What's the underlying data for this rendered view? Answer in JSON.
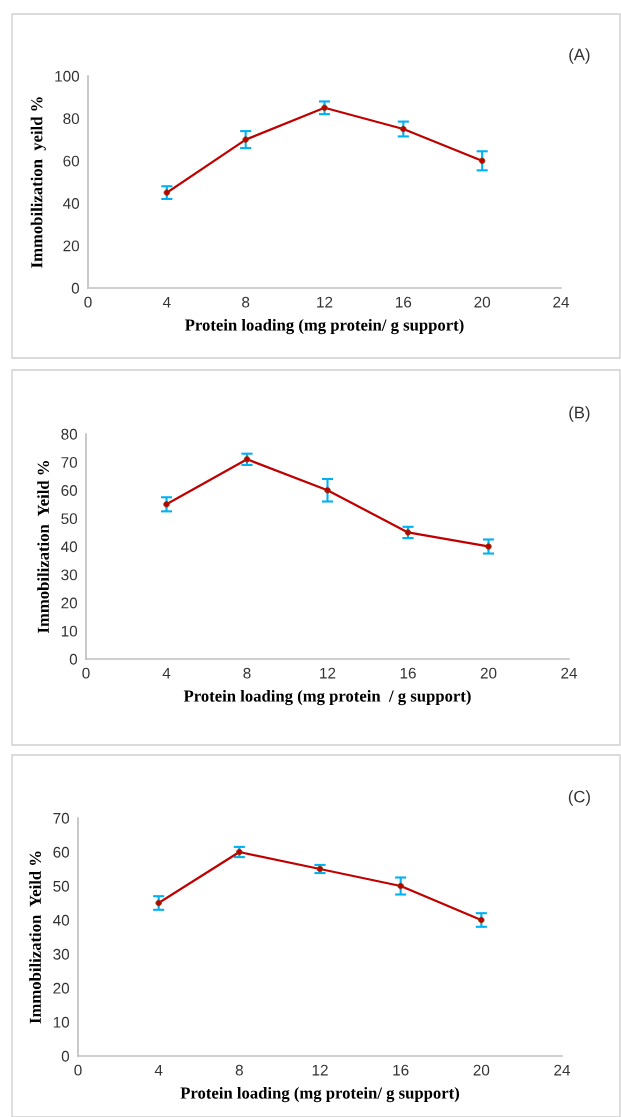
{
  "chart_data": [
    {
      "type": "line",
      "xlabel": "Protein loading (mg protein/ g support)",
      "ylabel": "Immobilization  yeild %",
      "annotations": [
        "(A)"
      ],
      "x": [
        4,
        8,
        12,
        16,
        20
      ],
      "series": [
        {
          "color": "#c00000",
          "values": [
            45,
            70,
            85,
            75,
            60
          ],
          "errors": [
            3,
            4,
            3,
            3.5,
            4.5
          ]
        }
      ],
      "xlim": [
        0,
        24
      ],
      "xticks": [
        0,
        4,
        8,
        12,
        16,
        20,
        24
      ],
      "ylim": [
        0,
        100
      ],
      "yticks": [
        0,
        20,
        40,
        60,
        80,
        100
      ],
      "marker": "circle",
      "line_style": "solid",
      "grid": false
    },
    {
      "type": "line",
      "xlabel": "Protein loading (mg protein  / g support)",
      "ylabel": "Immobilization  Yeild %",
      "annotations": [
        "(B)"
      ],
      "x": [
        4,
        8,
        12,
        16,
        20
      ],
      "series": [
        {
          "color": "#c00000",
          "values": [
            55,
            71,
            60,
            45,
            40
          ],
          "errors": [
            2.5,
            2,
            4,
            2,
            2.5
          ]
        }
      ],
      "xlim": [
        0,
        24
      ],
      "xticks": [
        0,
        4,
        8,
        12,
        16,
        20,
        24
      ],
      "ylim": [
        0,
        80
      ],
      "yticks": [
        0,
        10,
        20,
        30,
        40,
        50,
        60,
        70,
        80
      ],
      "marker": "circle",
      "line_style": "solid",
      "grid": false
    },
    {
      "type": "line",
      "xlabel": "Protein loading (mg protein/ g support)",
      "ylabel": "Immobilization  Yeild %",
      "annotations": [
        "(C)"
      ],
      "x": [
        4,
        8,
        12,
        16,
        20
      ],
      "series": [
        {
          "color": "#c00000",
          "values": [
            45,
            60,
            55,
            50,
            40
          ],
          "errors": [
            2,
            1.5,
            1.2,
            2.5,
            2
          ]
        }
      ],
      "xlim": [
        0,
        24
      ],
      "xticks": [
        0,
        4,
        8,
        12,
        16,
        20,
        24
      ],
      "ylim": [
        0,
        70
      ],
      "yticks": [
        0,
        10,
        20,
        30,
        40,
        50,
        60,
        70
      ],
      "marker": "circle",
      "line_style": "solid",
      "grid": false
    }
  ]
}
